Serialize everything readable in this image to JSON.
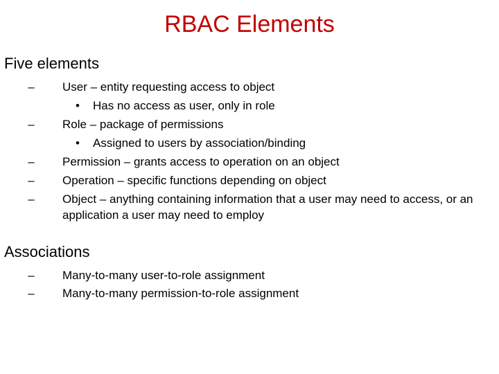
{
  "title": "RBAC Elements",
  "title_color": "#c00000",
  "title_fontsize": 34,
  "body_fontsize": 17,
  "heading_fontsize": 22,
  "background_color": "#ffffff",
  "text_color": "#000000",
  "dash_glyph": "–",
  "bullet_glyph": "•",
  "sections": [
    {
      "heading": "Five elements",
      "items": [
        {
          "text": "User – entity requesting access to object",
          "sub": [
            {
              "text": "Has no access as user, only in role"
            }
          ]
        },
        {
          "text": "Role – package of permissions",
          "sub": [
            {
              "text": "Assigned to users by association/binding"
            }
          ]
        },
        {
          "text": "Permission – grants access to operation on an object",
          "sub": []
        },
        {
          "text": "Operation – specific functions depending on object",
          "sub": []
        },
        {
          "text": "Object – anything containing information that a user may need to access, or an application a user may need to employ",
          "sub": []
        }
      ]
    },
    {
      "heading": "Associations",
      "items": [
        {
          "text": "Many-to-many user-to-role assignment",
          "sub": []
        },
        {
          "text": "Many-to-many permission-to-role assignment",
          "sub": []
        }
      ]
    }
  ]
}
